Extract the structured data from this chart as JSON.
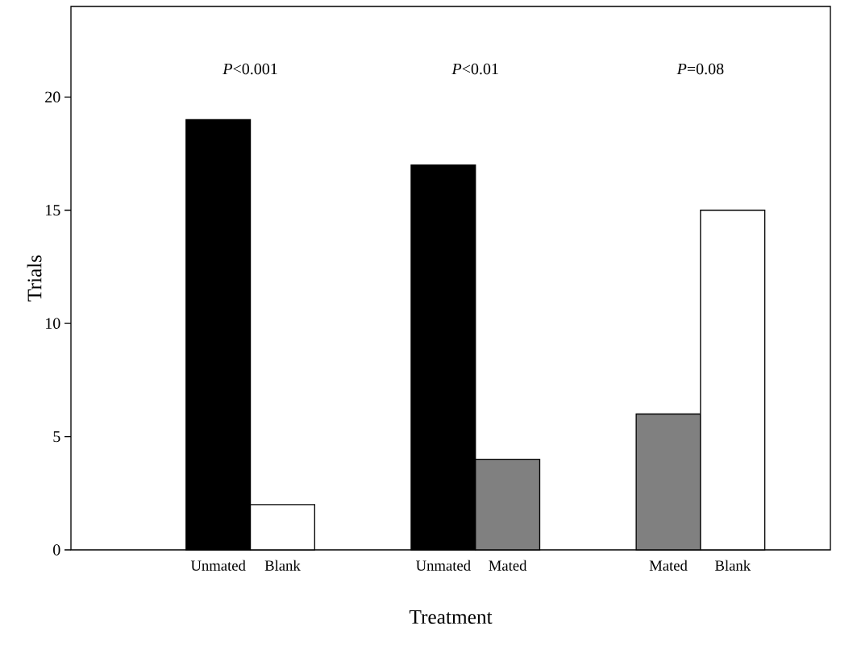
{
  "chart_data": {
    "type": "bar",
    "categories": [
      "Unmated",
      "Blank",
      "Unmated",
      "Mated",
      "Mated",
      "Blank"
    ],
    "values": [
      19,
      2,
      17,
      4,
      6,
      15
    ],
    "colors": [
      "#000000",
      "#ffffff",
      "#000000",
      "#808080",
      "#808080",
      "#ffffff"
    ],
    "ylim": [
      0,
      24
    ],
    "yticks": [
      0,
      5,
      10,
      15,
      20
    ],
    "xlabel": "Treatment",
    "ylabel": "Trials",
    "annotations": [
      "*P*<0.001",
      "*P*<0.01",
      "*P*=0.08"
    ]
  }
}
